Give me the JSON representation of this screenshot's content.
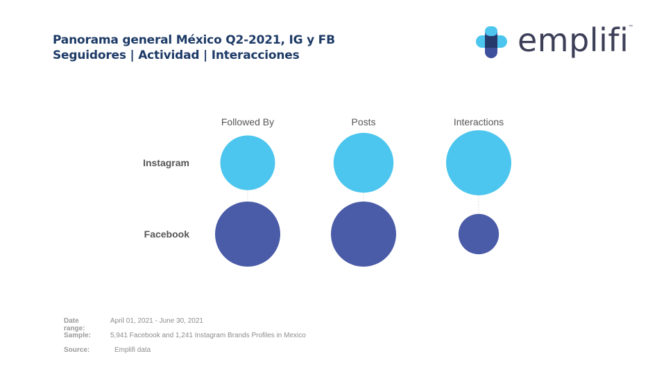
{
  "header": {
    "title_line1": "Panorama general México Q2-2021, IG y FB",
    "title_line2": "Seguidores | Actividad | Interacciones"
  },
  "logo": {
    "text": "emplifi",
    "trademark": "™",
    "icon": "emplifi-cross-icon",
    "colors": {
      "light_blue": "#4cc6ee",
      "dark_blue": "#3e4f9c",
      "navy": "#253a6b",
      "text": "#3c3f57"
    }
  },
  "chart_data": {
    "type": "bubble-matrix",
    "title": "",
    "columns": [
      "Followed By",
      "Posts",
      "Interactions"
    ],
    "rows": [
      {
        "name": "Instagram",
        "color": "#4cc6ee",
        "values": [
          0.84,
          0.92,
          1.0
        ]
      },
      {
        "name": "Facebook",
        "color": "#4a5ba8",
        "values": [
          1.0,
          1.0,
          0.62
        ]
      }
    ],
    "value_note": "relative bubble sizes (no numbers printed)",
    "connector_color": "#d9d9d9"
  },
  "footer": {
    "date_range_label": "Date range:",
    "date_range_value": "April 01, 2021 - June 30, 2021",
    "sample_label": "Sample:",
    "sample_value": "5,941 Facebook and 1,241 Instagram Brands Profiles in Mexico",
    "source_label": "Source:",
    "source_value": "Emplifi data"
  }
}
